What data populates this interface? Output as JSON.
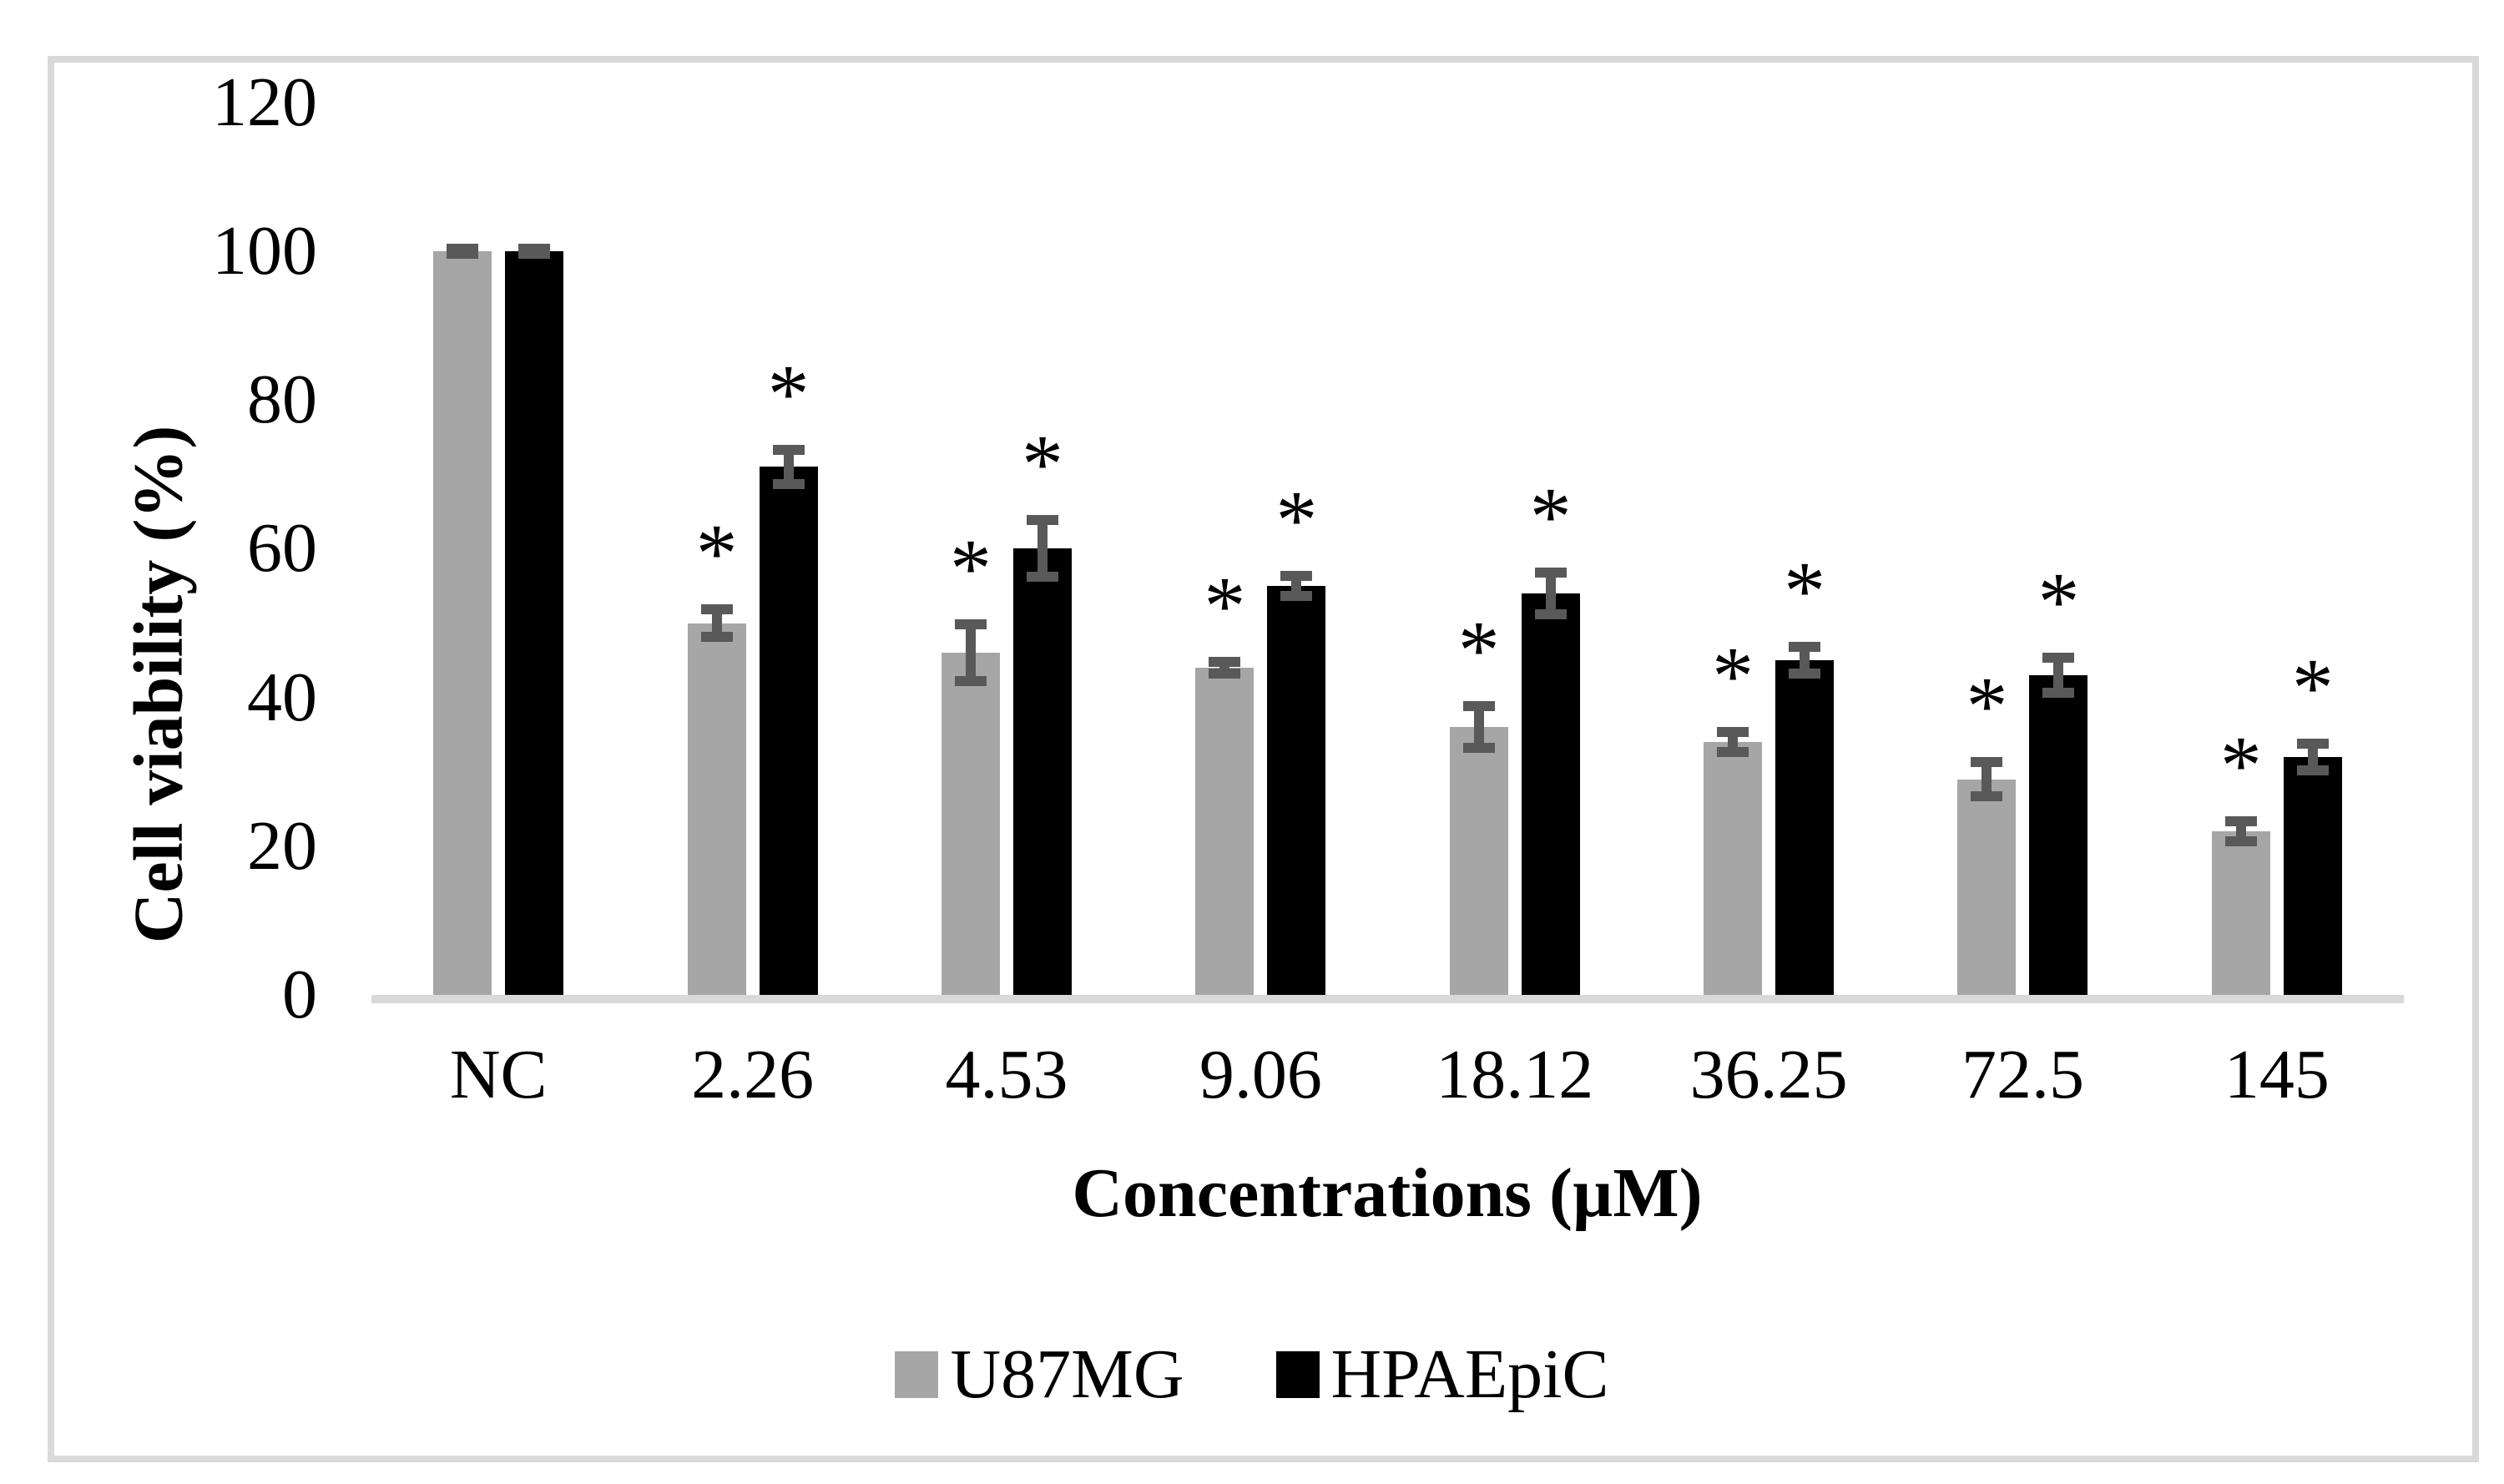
{
  "chart_data": {
    "type": "bar",
    "title": "",
    "categories": [
      "NC",
      "2.26",
      "4.53",
      "9.06",
      "18.12",
      "36.25",
      "72.5",
      "145"
    ],
    "series": [
      {
        "name": "U87MG",
        "color": "#a6a6a6",
        "values": [
          100,
          50,
          46,
          44,
          36,
          34,
          29,
          22
        ],
        "errors": [
          1,
          2.5,
          4.5,
          1.5,
          3.5,
          2,
          3,
          2
        ],
        "significance": [
          false,
          true,
          true,
          true,
          true,
          true,
          true,
          true
        ]
      },
      {
        "name": "HPAEpiC",
        "color": "#000000",
        "values": [
          100,
          71,
          60,
          55,
          54,
          45,
          43,
          32
        ],
        "errors": [
          1,
          3,
          4.5,
          2,
          3.5,
          2.5,
          3,
          2.5
        ],
        "significance": [
          false,
          true,
          true,
          true,
          true,
          true,
          true,
          true
        ]
      }
    ],
    "ylabel": "Cell viability (%)",
    "xlabel": "Concentrations (µM)",
    "ylim": [
      0,
      120
    ],
    "yticks": [
      0,
      20,
      40,
      60,
      80,
      100,
      120
    ],
    "grid": false,
    "legend_position": "bottom",
    "significance_marker": "*",
    "error_bar_color": "#595959",
    "axis_line_color": "#d9d9d9"
  }
}
